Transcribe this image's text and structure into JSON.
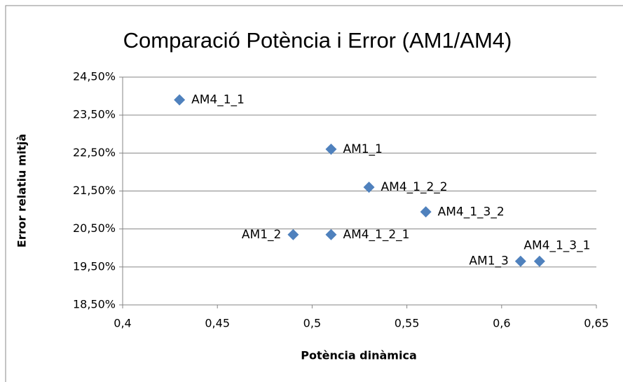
{
  "chart_data": {
    "type": "scatter",
    "title": "Comparació Potència i Error (AM1/AM4)",
    "x_label": "Potència dinàmica",
    "y_label": "Error relatiu mitjà",
    "point_labels": [
      "AM4_1_1",
      "AM1_1",
      "AM4_1_2_2",
      "AM4_1_3_2",
      "AM1_2",
      "AM4_1_2_1",
      "AM1_3",
      "AM4_1_3_1"
    ],
    "x": [
      0.43,
      0.51,
      0.53,
      0.56,
      0.49,
      0.51,
      0.61,
      0.62
    ],
    "values": [
      23.9,
      22.6,
      21.6,
      20.95,
      20.35,
      20.35,
      19.65,
      19.65
    ],
    "color": "#4f81bd",
    "xlim": [
      0.4,
      0.65
    ],
    "xticks": [
      {
        "value": 0.4,
        "label": "0,4"
      },
      {
        "value": 0.45,
        "label": "0,45"
      },
      {
        "value": 0.5,
        "label": "0,5"
      },
      {
        "value": 0.55,
        "label": "0,55"
      },
      {
        "value": 0.6,
        "label": "0,6"
      },
      {
        "value": 0.65,
        "label": "0,65"
      }
    ],
    "ylim": [
      18.5,
      24.5
    ],
    "yticks": [
      {
        "value": 18.5,
        "label": "18,50%"
      },
      {
        "value": 19.5,
        "label": "19,50%"
      },
      {
        "value": 20.5,
        "label": "20,50%"
      },
      {
        "value": 21.5,
        "label": "21,50%"
      },
      {
        "value": 22.5,
        "label": "22,50%"
      },
      {
        "value": 23.5,
        "label": "23,50%"
      },
      {
        "value": 24.5,
        "label": "24,50%"
      }
    ],
    "grid": true
  }
}
